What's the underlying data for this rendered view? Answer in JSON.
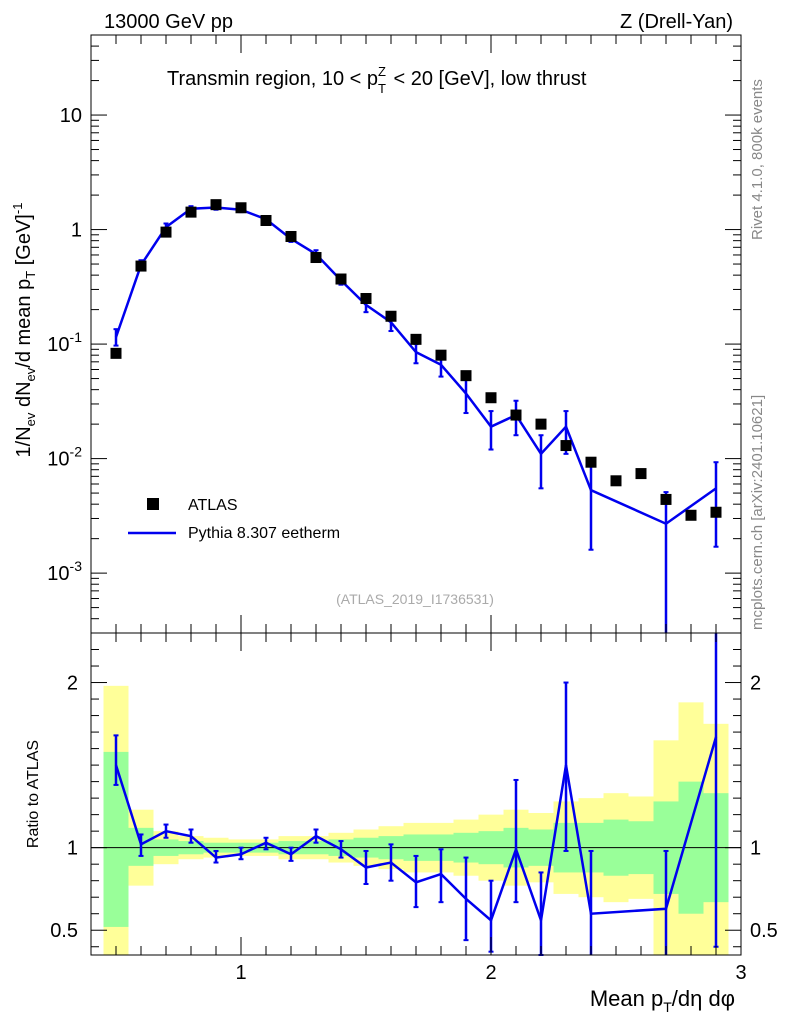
{
  "header": {
    "left": "13000 GeV pp",
    "right": "Z (Drell-Yan)"
  },
  "side_labels": {
    "rivet": "Rivet 4.1.0,  800k events",
    "mcplots": "mcplots.cern.ch [arXiv:2401.10621]"
  },
  "chart_data": [
    {
      "type": "scatter",
      "panel": "main",
      "title": "Transmin region, 10 < p_T^Z < 20 [GeV], low thrust",
      "watermark": "(ATLAS_2019_I1736531)",
      "ylabel": "1/N_ev dN_ev/d mean p_T [GeV]^-1",
      "yscale": "log",
      "ylim": [
        0.0003,
        50
      ],
      "xlim": [
        0.4,
        3.0
      ],
      "y_ticks": [
        "10^-3",
        "10^-2",
        "10^-1",
        "1",
        "10"
      ],
      "legend": {
        "position": "bottom-left",
        "entries": [
          "ATLAS",
          "Pythia 8.307 eetherm"
        ]
      },
      "colors": {
        "data": "#000000",
        "mc": "#0000ee",
        "band_inner": "#99ff99",
        "band_outer": "#ffff99"
      },
      "series": [
        {
          "name": "ATLAS",
          "x": [
            0.5,
            0.6,
            0.7,
            0.8,
            0.9,
            1.0,
            1.1,
            1.2,
            1.3,
            1.4,
            1.5,
            1.6,
            1.7,
            1.8,
            1.9,
            2.0,
            2.1,
            2.2,
            2.3,
            2.4,
            2.5,
            2.6,
            2.7,
            2.8,
            2.9
          ],
          "values": [
            0.083,
            0.48,
            0.95,
            1.42,
            1.65,
            1.55,
            1.2,
            0.87,
            0.57,
            0.37,
            0.25,
            0.175,
            0.11,
            0.08,
            0.053,
            0.034,
            0.024,
            0.02,
            0.013,
            0.0093,
            0.0064,
            0.0074,
            0.0044,
            0.0032,
            0.0034
          ]
        },
        {
          "name": "Pythia 8.307 eetherm",
          "x": [
            0.5,
            0.6,
            0.7,
            0.8,
            0.9,
            1.0,
            1.1,
            1.2,
            1.3,
            1.4,
            1.5,
            1.6,
            1.7,
            1.8,
            1.9,
            2.0,
            2.1,
            2.2,
            2.3,
            2.4,
            2.7,
            2.9
          ],
          "values": [
            0.115,
            0.49,
            1.05,
            1.52,
            1.56,
            1.49,
            1.23,
            0.83,
            0.61,
            0.36,
            0.22,
            0.155,
            0.085,
            0.066,
            0.037,
            0.019,
            0.024,
            0.011,
            0.019,
            0.0053,
            0.0027,
            0.0055
          ],
          "err_low": [
            0.097,
            0.45,
            0.98,
            1.44,
            1.49,
            1.42,
            1.16,
            0.78,
            0.56,
            0.33,
            0.19,
            0.13,
            0.068,
            0.052,
            0.025,
            0.012,
            0.016,
            0.0055,
            0.011,
            0.0016,
            0.0003,
            0.0017
          ],
          "err_high": [
            0.135,
            0.54,
            1.13,
            1.6,
            1.64,
            1.56,
            1.3,
            0.88,
            0.66,
            0.39,
            0.25,
            0.18,
            0.1,
            0.08,
            0.049,
            0.026,
            0.032,
            0.016,
            0.026,
            0.0092,
            0.0051,
            0.0093
          ]
        }
      ]
    },
    {
      "type": "line",
      "panel": "ratio",
      "ylabel": "Ratio to ATLAS",
      "xlabel": "Mean p_T/dη dφ",
      "ylim": [
        0.35,
        2.3
      ],
      "xlim": [
        0.4,
        3.0
      ],
      "x_ticks": [
        "1",
        "2",
        "3"
      ],
      "y_ticks": [
        "0.5",
        "1",
        "2"
      ],
      "bands": {
        "edges": [
          0.45,
          0.55,
          0.65,
          0.75,
          0.85,
          0.95,
          1.05,
          1.15,
          1.25,
          1.35,
          1.45,
          1.55,
          1.65,
          1.75,
          1.85,
          1.95,
          2.05,
          2.15,
          2.25,
          2.35,
          2.45,
          2.55,
          2.65,
          2.75,
          2.85,
          2.95
        ],
        "inner_low": [
          0.52,
          0.89,
          0.95,
          0.96,
          0.97,
          0.97,
          0.97,
          0.96,
          0.96,
          0.95,
          0.94,
          0.93,
          0.92,
          0.92,
          0.91,
          0.9,
          0.88,
          0.89,
          0.85,
          0.85,
          0.83,
          0.84,
          0.72,
          0.6,
          0.67
        ],
        "inner_high": [
          1.58,
          1.12,
          1.05,
          1.04,
          1.03,
          1.03,
          1.03,
          1.04,
          1.04,
          1.05,
          1.06,
          1.07,
          1.08,
          1.08,
          1.09,
          1.1,
          1.12,
          1.11,
          1.15,
          1.15,
          1.17,
          1.16,
          1.28,
          1.4,
          1.33
        ],
        "outer_low": [
          0.35,
          0.77,
          0.9,
          0.93,
          0.94,
          0.95,
          0.95,
          0.93,
          0.93,
          0.91,
          0.89,
          0.87,
          0.85,
          0.85,
          0.83,
          0.8,
          0.77,
          0.79,
          0.72,
          0.7,
          0.67,
          0.69,
          0.35,
          0.35,
          0.35
        ],
        "outer_high": [
          1.98,
          1.23,
          1.1,
          1.07,
          1.06,
          1.05,
          1.05,
          1.07,
          1.07,
          1.09,
          1.11,
          1.13,
          1.15,
          1.15,
          1.17,
          1.2,
          1.23,
          1.21,
          1.28,
          1.3,
          1.33,
          1.31,
          1.65,
          1.88,
          1.75
        ]
      },
      "series": [
        {
          "name": "Pythia 8.307 eetherm / ATLAS",
          "x": [
            0.5,
            0.6,
            0.7,
            0.8,
            0.9,
            1.0,
            1.1,
            1.2,
            1.3,
            1.4,
            1.5,
            1.6,
            1.7,
            1.8,
            1.9,
            2.0,
            2.1,
            2.2,
            2.3,
            2.4,
            2.7,
            2.9
          ],
          "values": [
            1.5,
            1.02,
            1.1,
            1.07,
            0.94,
            0.96,
            1.03,
            0.96,
            1.07,
            0.99,
            0.88,
            0.91,
            0.79,
            0.84,
            0.69,
            0.56,
            0.99,
            0.56,
            1.5,
            0.6,
            0.63,
            1.67
          ],
          "err_low": [
            1.38,
            0.95,
            1.06,
            1.03,
            0.91,
            0.93,
            0.99,
            0.92,
            1.03,
            0.94,
            0.78,
            0.8,
            0.64,
            0.67,
            0.44,
            0.37,
            0.67,
            0.35,
            0.98,
            0.2,
            0.3,
            0.4
          ],
          "err_high": [
            1.68,
            1.08,
            1.14,
            1.11,
            0.98,
            1.0,
            1.06,
            1.0,
            1.11,
            1.04,
            0.98,
            1.02,
            0.95,
            0.99,
            0.94,
            0.8,
            1.41,
            0.85,
            2.0,
            0.98,
            0.98,
            2.35
          ]
        }
      ]
    }
  ]
}
